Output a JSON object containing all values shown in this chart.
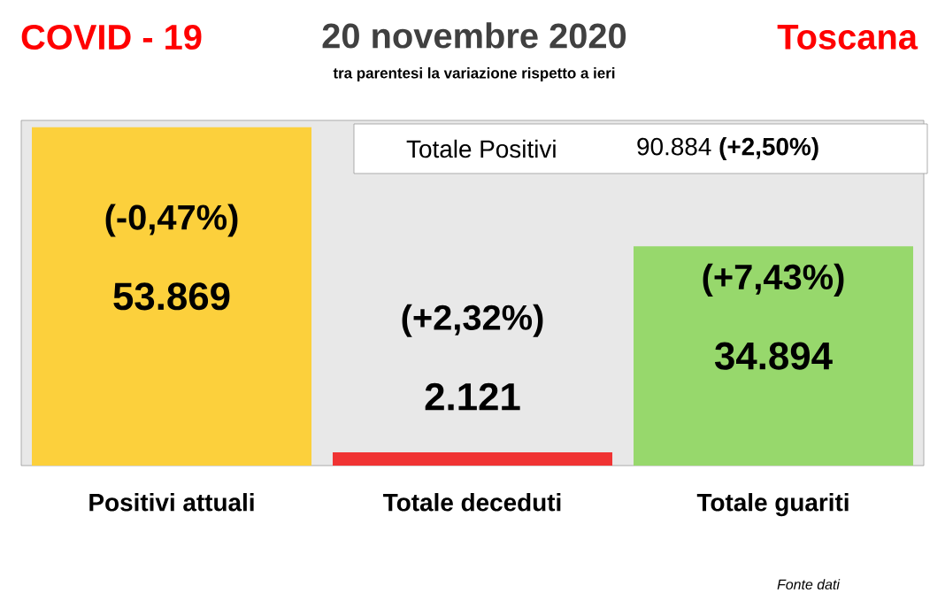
{
  "chart_data": {
    "type": "bar",
    "title": "20 novembre 2020",
    "subtitle": "tra parentesi la variazione rispetto a ieri",
    "categories": [
      "Positivi attuali",
      "Totale deceduti",
      "Totale guariti"
    ],
    "values": [
      53869,
      2121,
      34894
    ],
    "colors": [
      "#fcd03c",
      "#f03333",
      "#97d86c"
    ],
    "value_labels": [
      "53.869",
      "2.121",
      "34.894"
    ],
    "annotations": [
      "COVID - 19",
      "Toscana",
      "Totale Positivi",
      "90.884 **(+2,50%)**",
      "(-0,47%)",
      "(+2,32%)",
      "(+7,43%)",
      "Fonte dati"
    ]
  }
}
